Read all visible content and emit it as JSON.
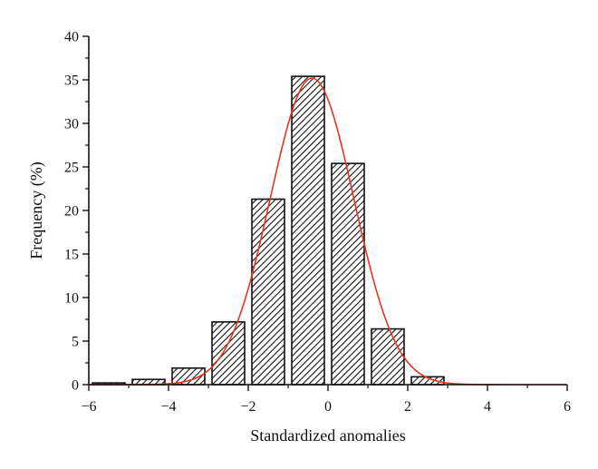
{
  "chart_data": {
    "type": "bar",
    "xlabel": "Standardized anomalies",
    "ylabel": "Frequency (%)",
    "xlim": [
      -6,
      6
    ],
    "ylim": [
      0,
      40
    ],
    "xticks": [
      -6,
      -4,
      -2,
      0,
      2,
      4,
      6
    ],
    "yticks": [
      0,
      5,
      10,
      15,
      20,
      25,
      30,
      35,
      40
    ],
    "bin_width": 1,
    "bins": [
      {
        "center": -5.5,
        "value": 0.2
      },
      {
        "center": -4.5,
        "value": 0.6
      },
      {
        "center": -3.5,
        "value": 1.9
      },
      {
        "center": -2.5,
        "value": 7.2
      },
      {
        "center": -1.5,
        "value": 21.3
      },
      {
        "center": -0.5,
        "value": 35.4
      },
      {
        "center": 0.5,
        "value": 25.4
      },
      {
        "center": 1.5,
        "value": 6.4
      },
      {
        "center": 2.5,
        "value": 0.9
      }
    ],
    "fit_curve": {
      "type": "normal",
      "mean": -0.4,
      "sd": 1.05,
      "peak": 35.2
    },
    "grid": false,
    "colors": {
      "bar_fill_pattern": "diagonal-hatch",
      "bar_edge": "#111111",
      "curve": "#e8341c",
      "axis": "#111111"
    }
  }
}
